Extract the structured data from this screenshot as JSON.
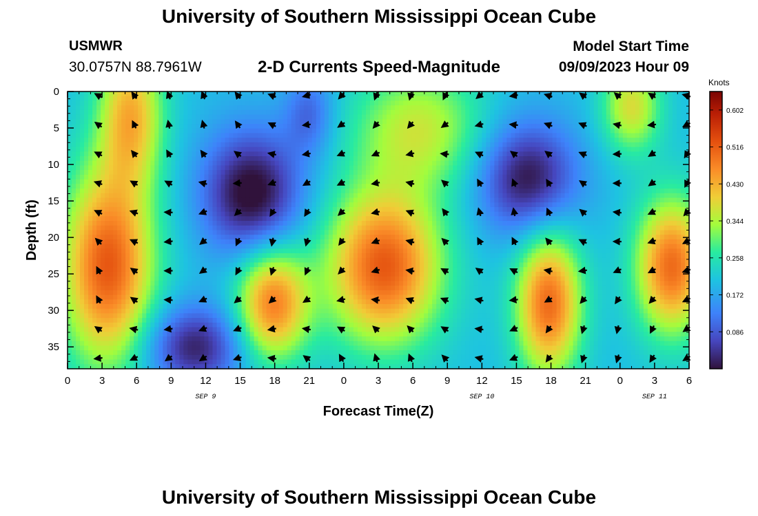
{
  "header": {
    "title": "University of Southern Mississippi Ocean Cube",
    "station": "USMWR",
    "coords": "30.0757N  88.7961W",
    "subtitle": "2-D Currents Speed-Magnitude",
    "start_label": "Model Start Time",
    "start_value": "09/09/2023 Hour 09"
  },
  "footer": {
    "title": "University of Southern Mississippi Ocean Cube"
  },
  "chart_data": {
    "type": "heatmap",
    "title": "2-D Currents Speed-Magnitude",
    "xlabel": "Forecast Time(Z)",
    "ylabel": "Depth (ft)",
    "x_range_hours": [
      0,
      54
    ],
    "ylim": [
      38,
      0
    ],
    "x_ticks": [
      {
        "h": 0,
        "label": "0"
      },
      {
        "h": 3,
        "label": "3"
      },
      {
        "h": 6,
        "label": "6"
      },
      {
        "h": 9,
        "label": "9"
      },
      {
        "h": 12,
        "label": "12"
      },
      {
        "h": 15,
        "label": "15"
      },
      {
        "h": 18,
        "label": "18"
      },
      {
        "h": 21,
        "label": "21"
      },
      {
        "h": 24,
        "label": "0"
      },
      {
        "h": 27,
        "label": "3"
      },
      {
        "h": 30,
        "label": "6"
      },
      {
        "h": 33,
        "label": "9"
      },
      {
        "h": 36,
        "label": "12"
      },
      {
        "h": 39,
        "label": "15"
      },
      {
        "h": 42,
        "label": "18"
      },
      {
        "h": 45,
        "label": "21"
      },
      {
        "h": 48,
        "label": "0"
      },
      {
        "h": 51,
        "label": "3"
      },
      {
        "h": 54,
        "label": "6"
      }
    ],
    "y_ticks": [
      0,
      5,
      10,
      15,
      20,
      25,
      30,
      35
    ],
    "date_labels": [
      {
        "h": 12,
        "label": "SEP 9"
      },
      {
        "h": 36,
        "label": "SEP 10"
      },
      {
        "h": 51,
        "label": "SEP 11"
      }
    ],
    "colorbar": {
      "label": "Knots",
      "min": 0.0,
      "max": 0.645,
      "ticks": [
        "0.086",
        "0.172",
        "0.258",
        "0.344",
        "0.430",
        "0.516",
        "0.602"
      ],
      "tick_values": [
        0.086,
        0.172,
        0.258,
        0.344,
        0.43,
        0.516,
        0.602
      ]
    },
    "speed_blobs": [
      {
        "h": 3.5,
        "d": 24,
        "sh": 2.8,
        "sd": 9.5,
        "a": 0.32
      },
      {
        "h": 5.5,
        "d": 3,
        "sh": 2.0,
        "sd": 7,
        "a": 0.22
      },
      {
        "h": 27.5,
        "d": 24,
        "sh": 3.5,
        "sd": 7.5,
        "a": 0.32
      },
      {
        "h": 30.5,
        "d": 5,
        "sh": 4.0,
        "sd": 6,
        "a": 0.16
      },
      {
        "h": 17.8,
        "d": 29,
        "sh": 2.2,
        "sd": 5.5,
        "a": 0.28
      },
      {
        "h": 41.8,
        "d": 29,
        "sh": 2.0,
        "sd": 7,
        "a": 0.3
      },
      {
        "h": 52.5,
        "d": 24,
        "sh": 2.2,
        "sd": 6.5,
        "a": 0.3
      },
      {
        "h": 49.0,
        "d": 2,
        "sh": 1.8,
        "sd": 4.5,
        "a": 0.18
      },
      {
        "h": 16.0,
        "d": 14,
        "sh": 3.0,
        "sd": 6.0,
        "a": -0.22
      },
      {
        "h": 40.0,
        "d": 12,
        "sh": 3.0,
        "sd": 5.5,
        "a": -0.2
      },
      {
        "h": 11.0,
        "d": 35,
        "sh": 3.0,
        "sd": 4.0,
        "a": -0.18
      },
      {
        "h": 21.0,
        "d": 3,
        "sh": 1.5,
        "sd": 4.0,
        "a": -0.1
      }
    ],
    "speed_base": 0.2,
    "arrow_times": [
      2.7,
      5.8,
      8.8,
      11.8,
      14.8,
      17.8,
      20.8,
      23.8,
      26.8,
      29.8,
      32.8,
      35.8,
      38.8,
      41.8,
      44.8,
      47.8,
      50.8,
      53.8
    ],
    "arrow_depths": [
      0,
      4,
      8,
      12,
      16,
      20,
      24,
      28,
      32,
      36
    ]
  }
}
